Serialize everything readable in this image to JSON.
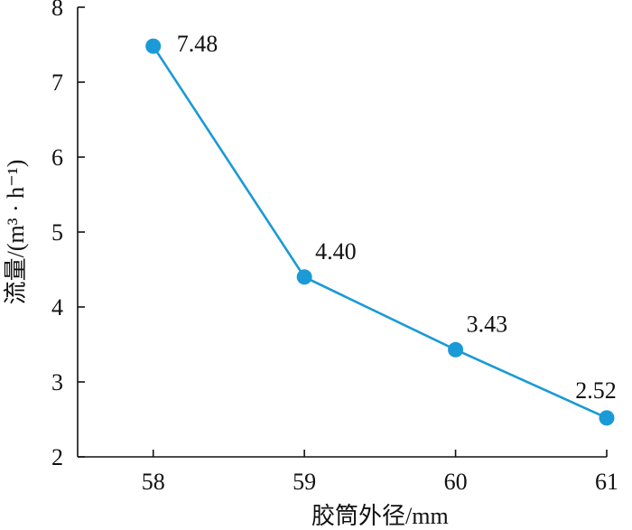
{
  "chart_data": {
    "type": "line",
    "x": [
      58,
      59,
      60,
      61
    ],
    "series": [
      {
        "values": [
          7.48,
          4.4,
          3.43,
          2.52
        ]
      }
    ],
    "data_labels": [
      "7.48",
      "4.40",
      "3.43",
      "2.52"
    ],
    "xticks": [
      58,
      59,
      60,
      61
    ],
    "yticks": [
      2,
      3,
      4,
      5,
      6,
      7,
      8
    ],
    "xlim": [
      57.5,
      61
    ],
    "ylim": [
      2,
      8
    ],
    "xlabel": "胶筒外径/mm",
    "ylabel": "流量/(m³ · h⁻¹)",
    "grid": false,
    "line_color": "#1a9ad6",
    "marker_color": "#1a9ad6"
  }
}
